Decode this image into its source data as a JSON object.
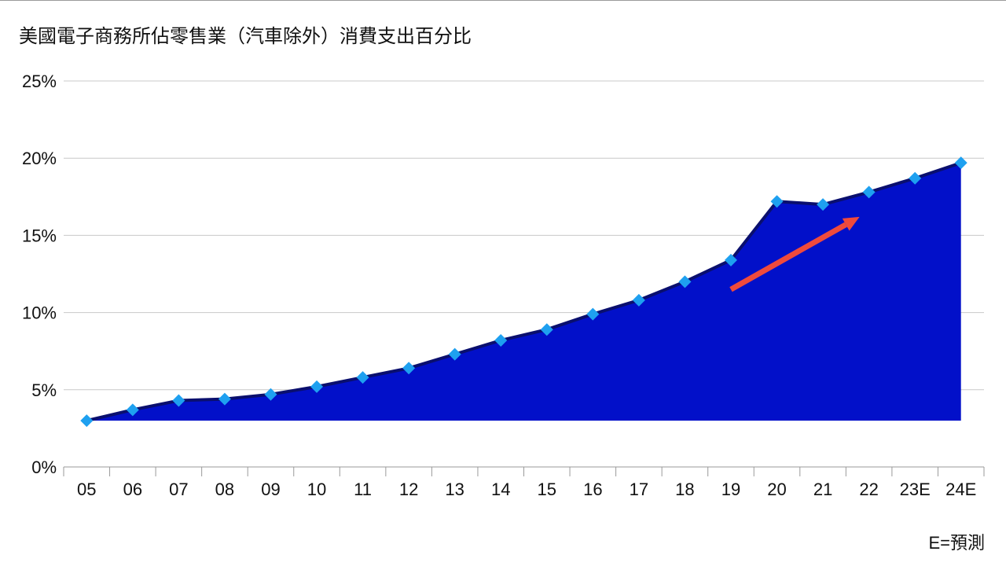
{
  "chart_data": {
    "type": "area",
    "title": "美國電子商務所佔零售業（汽車除外）消費支出百分比",
    "categories": [
      "05",
      "06",
      "07",
      "08",
      "09",
      "10",
      "11",
      "12",
      "13",
      "14",
      "15",
      "16",
      "17",
      "18",
      "19",
      "20",
      "21",
      "22",
      "23E",
      "24E"
    ],
    "series": [
      {
        "values": [
          3.0,
          3.7,
          4.3,
          4.4,
          4.7,
          5.2,
          5.8,
          6.4,
          7.3,
          8.2,
          8.9,
          9.9,
          10.8,
          12.0,
          13.4,
          17.2,
          17.0,
          17.8,
          18.7,
          19.7
        ]
      }
    ],
    "ylim": [
      0,
      25
    ],
    "yticks": [
      0,
      5,
      10,
      15,
      20,
      25
    ],
    "ytick_labels": [
      "0%",
      "5%",
      "10%",
      "15%",
      "20%",
      "25%"
    ],
    "xlabel": "",
    "ylabel": "",
    "grid": true,
    "trend_arrow": {
      "from": {
        "x": "19",
        "y": 11.5
      },
      "to": {
        "x": "22",
        "y": 16.2
      },
      "color": "#f04a3c"
    },
    "colors": {
      "area": "#0210c9",
      "outline": "#0a0f6e",
      "marker": "#1ea0f0",
      "grid": "#c8c8c8"
    }
  },
  "footnote": "E=預測"
}
